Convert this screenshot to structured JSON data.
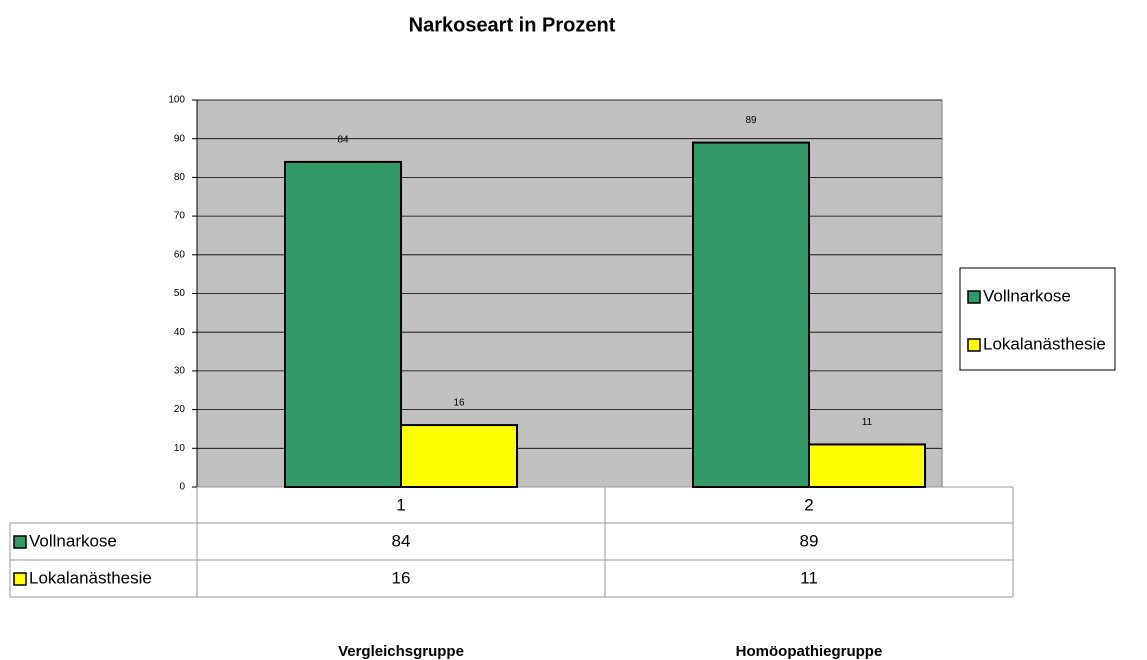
{
  "chart_data": {
    "type": "bar",
    "title": "Narkoseart in Prozent",
    "categories": [
      "1",
      "2"
    ],
    "series": [
      {
        "name": "Vollnarkose",
        "color": "#339966",
        "values": [
          84,
          89
        ]
      },
      {
        "name": "Lokalanästhesie",
        "color": "#ffff00",
        "values": [
          16,
          11
        ]
      }
    ],
    "ylim": [
      0,
      100
    ],
    "yticks": [
      0,
      10,
      20,
      30,
      40,
      50,
      60,
      70,
      80,
      90,
      100
    ],
    "grid": true,
    "legend": "right",
    "annotations": [
      "Vergleichsgruppe",
      "Homöopathiegruppe"
    ]
  }
}
